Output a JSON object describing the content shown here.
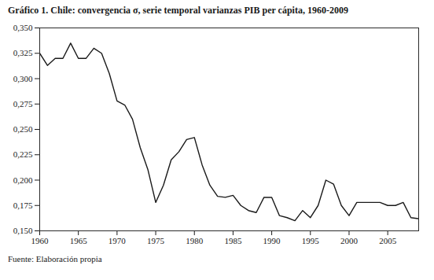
{
  "chart_data": {
    "type": "line",
    "title": "Gráfico 1. Chile: convergencia σ, serie temporal varianzas PIB per cápita, 1960-2009",
    "caption": "Fuente: Elaboración propia",
    "x": [
      1960,
      1961,
      1962,
      1963,
      1964,
      1965,
      1966,
      1967,
      1968,
      1969,
      1970,
      1971,
      1972,
      1973,
      1974,
      1975,
      1976,
      1977,
      1978,
      1979,
      1980,
      1981,
      1982,
      1983,
      1984,
      1985,
      1986,
      1987,
      1988,
      1989,
      1990,
      1991,
      1992,
      1993,
      1994,
      1995,
      1996,
      1997,
      1998,
      1999,
      2000,
      2001,
      2002,
      2003,
      2004,
      2005,
      2006,
      2007,
      2008,
      2009
    ],
    "values": [
      0.325,
      0.313,
      0.32,
      0.32,
      0.335,
      0.32,
      0.32,
      0.33,
      0.325,
      0.305,
      0.278,
      0.274,
      0.26,
      0.232,
      0.21,
      0.178,
      0.195,
      0.22,
      0.228,
      0.24,
      0.242,
      0.215,
      0.195,
      0.184,
      0.183,
      0.185,
      0.175,
      0.17,
      0.168,
      0.183,
      0.183,
      0.165,
      0.163,
      0.16,
      0.17,
      0.163,
      0.175,
      0.2,
      0.196,
      0.175,
      0.165,
      0.178,
      0.178,
      0.178,
      0.178,
      0.175,
      0.175,
      0.178,
      0.163,
      0.162
    ],
    "color": "#1a1a1a",
    "xlim": [
      1960,
      2009
    ],
    "xticks": [
      1960,
      1965,
      1970,
      1975,
      1980,
      1985,
      1990,
      1995,
      2000,
      2005
    ],
    "ylim": [
      0.15,
      0.35
    ],
    "yticks": [
      {
        "value": 0.15,
        "label": "0,150"
      },
      {
        "value": 0.175,
        "label": "0,175"
      },
      {
        "value": 0.2,
        "label": "0,200"
      },
      {
        "value": 0.225,
        "label": "0,225"
      },
      {
        "value": 0.25,
        "label": "0,250"
      },
      {
        "value": 0.275,
        "label": "0,275"
      },
      {
        "value": 0.3,
        "label": "0,300"
      },
      {
        "value": 0.325,
        "label": "0,325"
      },
      {
        "value": 0.35,
        "label": "0,350"
      }
    ],
    "grid": false
  }
}
